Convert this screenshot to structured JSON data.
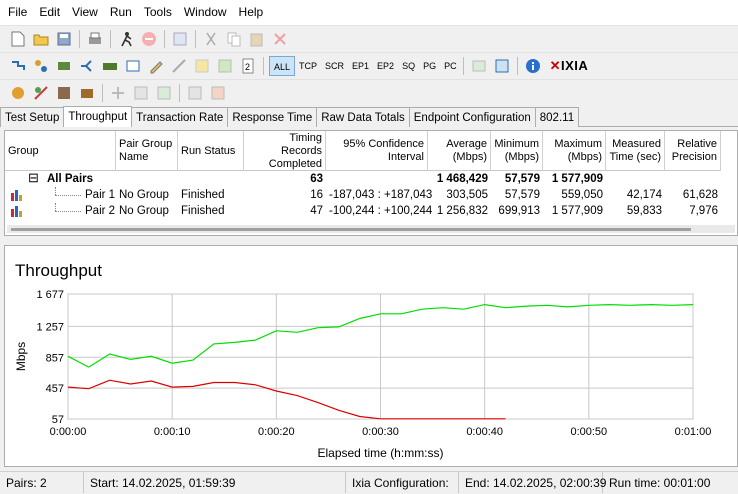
{
  "menu": [
    "File",
    "Edit",
    "View",
    "Run",
    "Tools",
    "Window",
    "Help"
  ],
  "toolbar2_filters": [
    "ALL",
    "TCP",
    "SCR",
    "EP1",
    "EP2",
    "SQ",
    "PG",
    "PC"
  ],
  "brand": "IXIA",
  "tabs": [
    "Test Setup",
    "Throughput",
    "Transaction Rate",
    "Response Time",
    "Raw Data Totals",
    "Endpoint Configuration",
    "802.11"
  ],
  "active_tab": "Throughput",
  "grid": {
    "headers": {
      "group": "Group",
      "pair_group": "Pair Group Name",
      "run_status": "Run Status",
      "timing": "Timing Records Completed",
      "confidence": "95% Confidence Interval",
      "average": "Average (Mbps)",
      "minimum": "Minimum (Mbps)",
      "maximum": "Maximum (Mbps)",
      "measured": "Measured Time (sec)",
      "relative": "Relative Precision"
    },
    "summary": {
      "expand": "⊟",
      "name": "All Pairs",
      "timing": "63",
      "confidence": "",
      "average": "1 468,429",
      "minimum": "57,579",
      "maximum": "1 577,909"
    },
    "rows": [
      {
        "name": "Pair 1",
        "group": "No Group",
        "status": "Finished",
        "timing": "16",
        "confidence": "-187,043 : +187,043",
        "average": "303,505",
        "minimum": "57,579",
        "maximum": "559,050",
        "measured": "42,174",
        "relative": "61,628"
      },
      {
        "name": "Pair 2",
        "group": "No Group",
        "status": "Finished",
        "timing": "47",
        "confidence": "-100,244 : +100,244",
        "average": "1 256,832",
        "minimum": "699,913",
        "maximum": "1 577,909",
        "measured": "59,833",
        "relative": "7,976"
      }
    ]
  },
  "chart_data": {
    "type": "line",
    "title": "Throughput",
    "xlabel": "Elapsed time (h:mm:ss)",
    "ylabel": "Mbps",
    "ylim": [
      57,
      1677
    ],
    "yticks": [
      "1 677",
      "1 257",
      "857",
      "457",
      "57"
    ],
    "ytick_values": [
      1677,
      1257,
      857,
      457,
      57
    ],
    "xticks": [
      "0:00:00",
      "0:00:10",
      "0:00:20",
      "0:00:30",
      "0:00:40",
      "0:00:50",
      "0:01:00"
    ],
    "xlim": [
      0,
      60
    ],
    "grid": true,
    "series": [
      {
        "color": "#00dd00",
        "x": [
          0,
          2,
          4,
          6,
          8,
          10,
          12,
          14,
          16,
          18,
          20,
          22,
          24,
          26,
          28,
          30,
          32,
          34,
          36,
          38,
          40,
          42,
          44,
          46,
          48,
          50,
          52,
          54,
          56,
          58,
          60
        ],
        "y": [
          870,
          730,
          900,
          830,
          870,
          780,
          820,
          1030,
          1050,
          1080,
          1200,
          1180,
          1240,
          1250,
          1360,
          1420,
          1420,
          1480,
          1500,
          1480,
          1540,
          1500,
          1520,
          1530,
          1510,
          1530,
          1540,
          1530,
          1540,
          1530,
          1540
        ]
      },
      {
        "color": "#dd0000",
        "x": [
          0,
          2,
          4,
          6,
          8,
          10,
          12,
          14,
          16,
          18,
          20,
          22,
          24,
          26,
          28,
          30,
          32,
          34,
          36,
          38,
          40,
          42
        ],
        "y": [
          470,
          450,
          560,
          510,
          550,
          470,
          480,
          530,
          530,
          500,
          420,
          360,
          270,
          170,
          90,
          60,
          60,
          60,
          60,
          60,
          60,
          60
        ]
      }
    ]
  },
  "status": {
    "pairs": "Pairs: 2",
    "start": "Start: 14.02.2025, 01:59:39",
    "config": "Ixia Configuration:",
    "end": "End: 14.02.2025, 02:00:39",
    "run_time": "Run time: 00:01:00"
  }
}
